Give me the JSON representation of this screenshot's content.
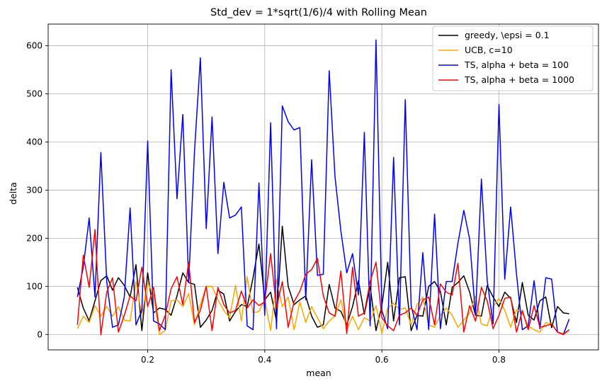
{
  "chart_data": {
    "type": "line",
    "title": "Std_dev = 1*sqrt(1/6)/4 with Rolling Mean",
    "xlabel": "mean",
    "ylabel": "delta",
    "xlim": [
      0.03,
      0.97
    ],
    "ylim": [
      -32,
      645
    ],
    "xticks": [
      0.2,
      0.4,
      0.6,
      0.8
    ],
    "xtick_labels": [
      "0.2",
      "0.4",
      "0.6",
      "0.8"
    ],
    "yticks": [
      0,
      100,
      200,
      300,
      400,
      500,
      600
    ],
    "ytick_labels": [
      "0",
      "100",
      "200",
      "300",
      "400",
      "500",
      "600"
    ],
    "grid": true,
    "legend_position": "top-right",
    "x": [
      0.08,
      0.09,
      0.1,
      0.11,
      0.12,
      0.13,
      0.14,
      0.15,
      0.16,
      0.17,
      0.18,
      0.19,
      0.2,
      0.21,
      0.22,
      0.23,
      0.24,
      0.25,
      0.26,
      0.27,
      0.28,
      0.29,
      0.3,
      0.31,
      0.32,
      0.33,
      0.34,
      0.35,
      0.36,
      0.37,
      0.38,
      0.39,
      0.4,
      0.41,
      0.42,
      0.43,
      0.44,
      0.45,
      0.46,
      0.47,
      0.48,
      0.49,
      0.5,
      0.51,
      0.52,
      0.53,
      0.54,
      0.55,
      0.56,
      0.57,
      0.58,
      0.59,
      0.6,
      0.61,
      0.62,
      0.63,
      0.64,
      0.65,
      0.66,
      0.67,
      0.68,
      0.69,
      0.7,
      0.71,
      0.72,
      0.73,
      0.74,
      0.75,
      0.76,
      0.77,
      0.78,
      0.79,
      0.8,
      0.81,
      0.82,
      0.83,
      0.84,
      0.85,
      0.86,
      0.87,
      0.88,
      0.89,
      0.9,
      0.91,
      0.92
    ],
    "series": [
      {
        "name": "greedy, \\epsi = 0.1",
        "color": "#000000",
        "values": [
          98,
          55,
          28,
          70,
          112,
          122,
          92,
          118,
          102,
          78,
          145,
          8,
          128,
          45,
          55,
          52,
          40,
          80,
          128,
          108,
          104,
          15,
          30,
          50,
          92,
          84,
          28,
          48,
          62,
          58,
          118,
          188,
          72,
          88,
          28,
          225,
          100,
          62,
          72,
          80,
          38,
          15,
          20,
          104,
          55,
          48,
          20,
          58,
          112,
          42,
          100,
          8,
          60,
          150,
          28,
          118,
          120,
          8,
          40,
          38,
          100,
          110,
          90,
          20,
          98,
          108,
          122,
          88,
          40,
          38,
          102,
          78,
          58,
          88,
          75,
          25,
          108,
          40,
          30,
          70,
          78,
          14,
          58,
          45,
          43
        ]
      },
      {
        "name": "UCB, c=10",
        "color": "#ffa500",
        "values": [
          12,
          38,
          25,
          60,
          38,
          58,
          38,
          58,
          30,
          28,
          110,
          40,
          108,
          82,
          0,
          8,
          70,
          72,
          58,
          85,
          20,
          62,
          100,
          100,
          72,
          50,
          35,
          102,
          28,
          120,
          45,
          48,
          72,
          8,
          115,
          58,
          78,
          10,
          68,
          25,
          58,
          35,
          12,
          28,
          38,
          72,
          10,
          38,
          10,
          35,
          28,
          60,
          2,
          55,
          65,
          52,
          55,
          20,
          62,
          78,
          20,
          15,
          40,
          55,
          40,
          15,
          30,
          45,
          80,
          22,
          18,
          58,
          75,
          50,
          15,
          52,
          45,
          18,
          10,
          5,
          25,
          22,
          5,
          2,
          10
        ]
      },
      {
        "name": "TS, alpha + beta = 100",
        "color": "#0000ff",
        "values": [
          78,
          140,
          242,
          78,
          378,
          110,
          15,
          20,
          78,
          263,
          20,
          50,
          402,
          28,
          22,
          10,
          550,
          282,
          457,
          108,
          380,
          575,
          220,
          452,
          168,
          316,
          242,
          248,
          265,
          18,
          10,
          315,
          40,
          440,
          12,
          475,
          442,
          425,
          430,
          72,
          363,
          123,
          125,
          548,
          328,
          215,
          128,
          168,
          82,
          420,
          18,
          612,
          50,
          12,
          368,
          20,
          488,
          60,
          10,
          170,
          10,
          250,
          12,
          110,
          110,
          190,
          258,
          198,
          40,
          323,
          112,
          22,
          478,
          115,
          265,
          125,
          10,
          18,
          112,
          12,
          118,
          115,
          5,
          0,
          32
        ]
      },
      {
        "name": "TS, alpha + beta = 1000",
        "color": "#ff0000",
        "values": [
          20,
          165,
          98,
          218,
          0,
          88,
          118,
          5,
          40,
          80,
          70,
          140,
          58,
          98,
          8,
          40,
          95,
          120,
          62,
          150,
          25,
          50,
          100,
          8,
          98,
          62,
          45,
          50,
          90,
          55,
          72,
          60,
          68,
          168,
          55,
          110,
          15,
          68,
          90,
          125,
          135,
          158,
          80,
          45,
          38,
          132,
          2,
          140,
          38,
          45,
          110,
          150,
          35,
          18,
          8,
          40,
          45,
          55,
          40,
          72,
          78,
          20,
          105,
          88,
          82,
          148,
          5,
          60,
          28,
          98,
          70,
          12,
          40,
          75,
          78,
          5,
          50,
          10,
          60,
          15,
          18,
          22,
          5,
          0,
          10
        ]
      }
    ]
  }
}
